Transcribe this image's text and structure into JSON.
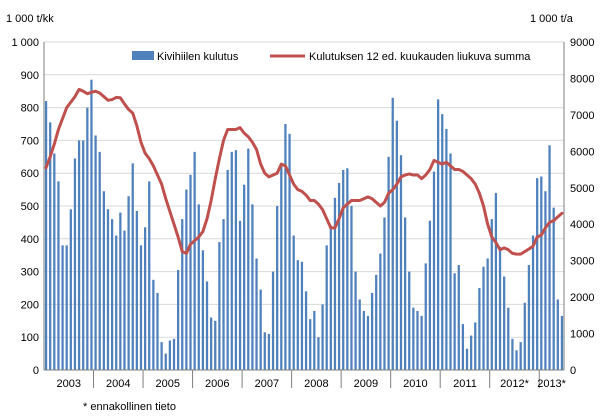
{
  "chart_data": {
    "type": "bar",
    "title": "",
    "y_left_unit": "1 000 t/kk",
    "y_right_unit": "1 000 t/a",
    "x_start": "2003-01",
    "x_end": "2013-04",
    "ylim_left": [
      0,
      1000
    ],
    "ylim_right": [
      0,
      9000
    ],
    "yticks_left": [
      "0",
      "100",
      "200",
      "300",
      "400",
      "500",
      "600",
      "700",
      "800",
      "900",
      "1 000"
    ],
    "yticks_right": [
      "0",
      "1000",
      "2000",
      "3000",
      "4000",
      "5000",
      "6000",
      "7000",
      "8000",
      "9000"
    ],
    "year_labels": [
      "2003",
      "2004",
      "2005",
      "2006",
      "2007",
      "2008",
      "2009",
      "2010",
      "2011",
      "2012*",
      "2013*"
    ],
    "grid": true,
    "legend_position": "top",
    "colors": {
      "bars": "#4f81bd",
      "line": "#c0504d",
      "grid": "#d9d9d9",
      "axis": "#7f7f7f"
    },
    "series": [
      {
        "name": "Kivihiilen kulutus",
        "type": "bar",
        "axis": "left",
        "values": [
          820,
          755,
          660,
          575,
          380,
          380,
          490,
          645,
          700,
          700,
          800,
          885,
          715,
          665,
          545,
          490,
          460,
          410,
          480,
          425,
          530,
          630,
          485,
          380,
          435,
          575,
          275,
          235,
          85,
          50,
          90,
          95,
          305,
          460,
          550,
          595,
          665,
          505,
          365,
          270,
          160,
          150,
          390,
          460,
          610,
          665,
          670,
          455,
          565,
          675,
          505,
          340,
          245,
          115,
          110,
          300,
          500,
          620,
          750,
          720,
          410,
          335,
          330,
          240,
          155,
          180,
          100,
          200,
          380,
          440,
          525,
          570,
          610,
          615,
          500,
          300,
          215,
          180,
          165,
          235,
          290,
          355,
          465,
          650,
          830,
          760,
          655,
          465,
          300,
          190,
          180,
          165,
          325,
          455,
          605,
          825,
          780,
          735,
          660,
          295,
          320,
          140,
          65,
          105,
          145,
          250,
          315,
          340,
          460,
          540,
          375,
          285,
          190,
          95,
          60,
          85,
          205,
          320,
          410,
          585,
          590,
          545,
          685,
          495,
          215,
          165
        ]
      },
      {
        "name": "Kulutuksen 12 ed. kuukauden liukuva summa",
        "type": "line",
        "axis": "right",
        "values": [
          5550,
          5850,
          6200,
          6600,
          6900,
          7200,
          7350,
          7500,
          7700,
          7650,
          7580,
          7620,
          7650,
          7600,
          7500,
          7400,
          7420,
          7480,
          7470,
          7300,
          7150,
          7050,
          6700,
          6250,
          5950,
          5800,
          5600,
          5350,
          5100,
          4700,
          4350,
          4000,
          3650,
          3250,
          3200,
          3450,
          3550,
          3650,
          3800,
          4150,
          4650,
          5250,
          5800,
          6300,
          6600,
          6600,
          6600,
          6650,
          6500,
          6400,
          6250,
          6050,
          5650,
          5400,
          5300,
          5350,
          5400,
          5650,
          5600,
          5350,
          5100,
          4950,
          4900,
          4800,
          4650,
          4650,
          4550,
          4400,
          4150,
          3900,
          3900,
          4150,
          4450,
          4550,
          4650,
          4650,
          4650,
          4700,
          4750,
          4700,
          4600,
          4500,
          4600,
          4850,
          4950,
          5100,
          5300,
          5350,
          5380,
          5350,
          5350,
          5250,
          5350,
          5500,
          5750,
          5700,
          5650,
          5700,
          5600,
          5500,
          5500,
          5450,
          5350,
          5250,
          5100,
          4850,
          4500,
          4000,
          3650,
          3500,
          3300,
          3350,
          3300,
          3200,
          3180,
          3180,
          3250,
          3320,
          3400,
          3650,
          3700,
          3900,
          4050,
          4100,
          4200,
          4300
        ]
      }
    ]
  },
  "footnote": "* ennakollinen tieto"
}
